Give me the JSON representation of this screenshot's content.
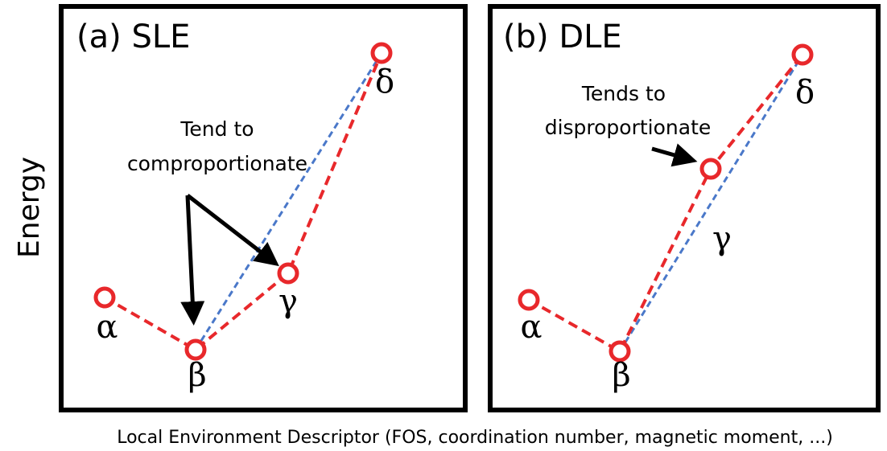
{
  "y_label": "Energy",
  "x_label": "Local Environment Descriptor (FOS, coordination number, magnetic moment, ...)",
  "panels": [
    {
      "title": "(a) SLE",
      "nodes": [
        {
          "label": "α"
        },
        {
          "label": "β"
        },
        {
          "label": "γ"
        },
        {
          "label": "δ"
        }
      ],
      "annotation": [
        "Tend to",
        "comproportionate"
      ]
    },
    {
      "title": "(b) DLE",
      "nodes": [
        {
          "label": "α"
        },
        {
          "label": "β"
        },
        {
          "label": "γ"
        },
        {
          "label": "δ"
        }
      ],
      "annotation": [
        "Tends to",
        "disproportionate"
      ]
    }
  ]
}
